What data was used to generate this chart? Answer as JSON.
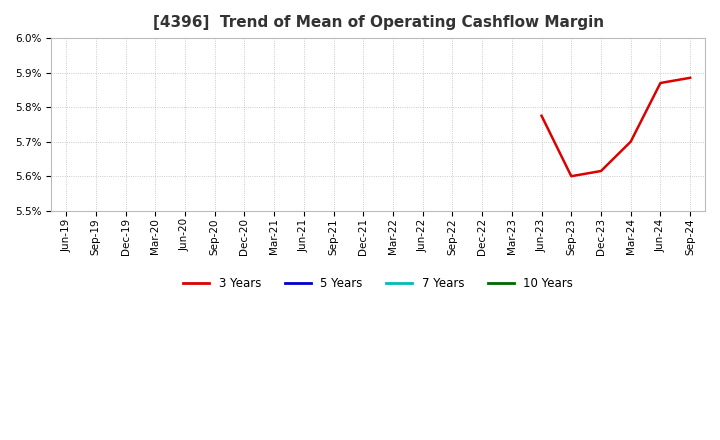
{
  "title": "[4396]  Trend of Mean of Operating Cashflow Margin",
  "title_fontsize": 11,
  "background_color": "#ffffff",
  "grid_color": "#aaaaaa",
  "x_labels": [
    "Jun-19",
    "Sep-19",
    "Dec-19",
    "Mar-20",
    "Jun-20",
    "Sep-20",
    "Dec-20",
    "Mar-21",
    "Jun-21",
    "Sep-21",
    "Dec-21",
    "Mar-22",
    "Jun-22",
    "Sep-22",
    "Dec-22",
    "Mar-23",
    "Jun-23",
    "Sep-23",
    "Dec-23",
    "Mar-24",
    "Jun-24",
    "Sep-24"
  ],
  "series_3y_x_labels": [
    "Jun-23",
    "Sep-23",
    "Dec-23",
    "Mar-24",
    "Jun-24",
    "Sep-24"
  ],
  "series_3y_y": [
    0.05775,
    0.056,
    0.05615,
    0.057,
    0.0587,
    0.05885
  ],
  "series_3y_color": "#dd0000",
  "series_3y_label": "3 Years",
  "series_5y_color": "#0000cc",
  "series_5y_label": "5 Years",
  "series_7y_color": "#00bbbb",
  "series_7y_label": "7 Years",
  "series_10y_color": "#006600",
  "series_10y_label": "10 Years",
  "ylim_min": 0.055,
  "ylim_max": 0.06,
  "yticks": [
    0.055,
    0.056,
    0.057,
    0.058,
    0.059,
    0.06
  ],
  "legend_fontsize": 8.5,
  "tick_fontsize": 7.5,
  "title_color": "#333333"
}
